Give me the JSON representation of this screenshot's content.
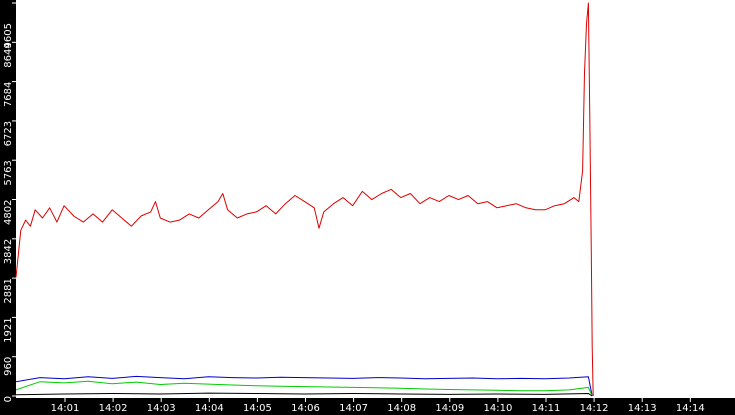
{
  "chart_data": {
    "type": "line",
    "title": "",
    "xlabel": "",
    "ylabel": "",
    "ylim": [
      0,
      9605
    ],
    "grid": false,
    "legend": "none",
    "x_ticks": [
      "14:01",
      "14:02",
      "14:03",
      "14:04",
      "14:05",
      "14:06",
      "14:07",
      "14:08",
      "14:09",
      "14:10",
      "14:11",
      "14:12",
      "14:13",
      "14:14"
    ],
    "y_ticks": [
      0,
      960,
      1921,
      2881,
      3842,
      4802,
      5763,
      6723,
      7684,
      8644,
      9605
    ],
    "x_range_minutes": [
      0.0,
      14.8
    ],
    "series": [
      {
        "color": "#dd0000",
        "points": [
          [
            0.0,
            2900
          ],
          [
            0.1,
            4050
          ],
          [
            0.2,
            4300
          ],
          [
            0.3,
            4150
          ],
          [
            0.4,
            4550
          ],
          [
            0.55,
            4350
          ],
          [
            0.7,
            4600
          ],
          [
            0.85,
            4250
          ],
          [
            1.0,
            4650
          ],
          [
            1.2,
            4400
          ],
          [
            1.4,
            4250
          ],
          [
            1.6,
            4450
          ],
          [
            1.8,
            4250
          ],
          [
            2.0,
            4550
          ],
          [
            2.2,
            4350
          ],
          [
            2.4,
            4150
          ],
          [
            2.6,
            4400
          ],
          [
            2.8,
            4500
          ],
          [
            2.9,
            4750
          ],
          [
            3.0,
            4350
          ],
          [
            3.2,
            4250
          ],
          [
            3.4,
            4300
          ],
          [
            3.6,
            4450
          ],
          [
            3.8,
            4350
          ],
          [
            4.0,
            4550
          ],
          [
            4.2,
            4750
          ],
          [
            4.3,
            4950
          ],
          [
            4.4,
            4550
          ],
          [
            4.6,
            4350
          ],
          [
            4.8,
            4450
          ],
          [
            5.0,
            4500
          ],
          [
            5.2,
            4650
          ],
          [
            5.4,
            4450
          ],
          [
            5.6,
            4700
          ],
          [
            5.8,
            4900
          ],
          [
            6.0,
            4750
          ],
          [
            6.2,
            4600
          ],
          [
            6.3,
            4100
          ],
          [
            6.4,
            4500
          ],
          [
            6.6,
            4700
          ],
          [
            6.8,
            4850
          ],
          [
            7.0,
            4650
          ],
          [
            7.2,
            5000
          ],
          [
            7.4,
            4800
          ],
          [
            7.6,
            4950
          ],
          [
            7.8,
            5050
          ],
          [
            8.0,
            4850
          ],
          [
            8.2,
            4950
          ],
          [
            8.4,
            4700
          ],
          [
            8.6,
            4850
          ],
          [
            8.8,
            4750
          ],
          [
            9.0,
            4900
          ],
          [
            9.2,
            4800
          ],
          [
            9.4,
            4900
          ],
          [
            9.6,
            4700
          ],
          [
            9.8,
            4750
          ],
          [
            10.0,
            4600
          ],
          [
            10.2,
            4650
          ],
          [
            10.4,
            4700
          ],
          [
            10.6,
            4600
          ],
          [
            10.8,
            4550
          ],
          [
            11.0,
            4550
          ],
          [
            11.2,
            4650
          ],
          [
            11.4,
            4700
          ],
          [
            11.6,
            4850
          ],
          [
            11.7,
            4750
          ],
          [
            11.78,
            5500
          ],
          [
            11.82,
            7900
          ],
          [
            11.86,
            9100
          ],
          [
            11.9,
            9605
          ],
          [
            11.93,
            6800
          ],
          [
            11.96,
            3500
          ],
          [
            11.98,
            1200
          ],
          [
            12.0,
            0
          ]
        ]
      },
      {
        "color": "#0000cc",
        "points": [
          [
            0.0,
            350
          ],
          [
            0.5,
            450
          ],
          [
            1.0,
            420
          ],
          [
            1.5,
            470
          ],
          [
            2.0,
            430
          ],
          [
            2.5,
            480
          ],
          [
            3.0,
            450
          ],
          [
            3.5,
            420
          ],
          [
            4.0,
            470
          ],
          [
            4.5,
            450
          ],
          [
            5.0,
            440
          ],
          [
            5.5,
            460
          ],
          [
            6.0,
            450
          ],
          [
            6.5,
            440
          ],
          [
            7.0,
            430
          ],
          [
            7.5,
            450
          ],
          [
            8.0,
            440
          ],
          [
            8.5,
            420
          ],
          [
            9.0,
            430
          ],
          [
            9.5,
            440
          ],
          [
            10.0,
            420
          ],
          [
            10.5,
            430
          ],
          [
            11.0,
            420
          ],
          [
            11.5,
            440
          ],
          [
            11.9,
            470
          ],
          [
            11.98,
            0
          ]
        ]
      },
      {
        "color": "#00cc00",
        "points": [
          [
            0.0,
            150
          ],
          [
            0.5,
            350
          ],
          [
            1.0,
            320
          ],
          [
            1.5,
            360
          ],
          [
            2.0,
            300
          ],
          [
            2.5,
            340
          ],
          [
            3.0,
            280
          ],
          [
            3.5,
            310
          ],
          [
            4.0,
            290
          ],
          [
            4.5,
            270
          ],
          [
            5.0,
            250
          ],
          [
            5.5,
            240
          ],
          [
            6.0,
            230
          ],
          [
            6.5,
            220
          ],
          [
            7.0,
            210
          ],
          [
            7.5,
            200
          ],
          [
            8.0,
            190
          ],
          [
            8.5,
            170
          ],
          [
            9.0,
            160
          ],
          [
            9.5,
            150
          ],
          [
            10.0,
            140
          ],
          [
            10.5,
            130
          ],
          [
            11.0,
            130
          ],
          [
            11.5,
            150
          ],
          [
            11.9,
            210
          ],
          [
            11.98,
            0
          ]
        ]
      },
      {
        "color": "#000000",
        "points": [
          [
            0.0,
            30
          ],
          [
            1.0,
            50
          ],
          [
            2.0,
            60
          ],
          [
            3.0,
            50
          ],
          [
            4.0,
            70
          ],
          [
            5.0,
            60
          ],
          [
            6.0,
            50
          ],
          [
            7.0,
            60
          ],
          [
            8.0,
            50
          ],
          [
            9.0,
            40
          ],
          [
            10.0,
            50
          ],
          [
            11.0,
            40
          ],
          [
            11.9,
            60
          ],
          [
            11.98,
            0
          ]
        ]
      }
    ]
  }
}
